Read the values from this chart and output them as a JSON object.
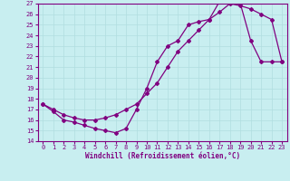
{
  "xlabel": "Windchill (Refroidissement éolien,°C)",
  "background_color": "#c8eef0",
  "line_color": "#800080",
  "grid_color": "#b0dde0",
  "xlim": [
    -0.5,
    23.5
  ],
  "ylim": [
    14,
    27
  ],
  "xticks": [
    0,
    1,
    2,
    3,
    4,
    5,
    6,
    7,
    8,
    9,
    10,
    11,
    12,
    13,
    14,
    15,
    16,
    17,
    18,
    19,
    20,
    21,
    22,
    23
  ],
  "yticks": [
    14,
    15,
    16,
    17,
    18,
    19,
    20,
    21,
    22,
    23,
    24,
    25,
    26,
    27
  ],
  "line1_x": [
    0,
    1,
    2,
    3,
    4,
    5,
    6,
    7,
    8,
    9,
    10,
    11,
    12,
    13,
    14,
    15,
    16,
    17,
    18,
    19,
    20,
    21,
    22,
    23
  ],
  "line1_y": [
    17.5,
    17.0,
    16.5,
    16.2,
    16.0,
    16.0,
    16.2,
    16.5,
    17.0,
    17.5,
    18.5,
    19.5,
    21.0,
    22.5,
    23.5,
    24.5,
    25.5,
    26.2,
    27.0,
    26.8,
    26.5,
    26.0,
    25.5,
    21.5
  ],
  "line2_x": [
    0,
    1,
    2,
    3,
    4,
    5,
    6,
    7,
    8,
    9,
    10,
    11,
    12,
    13,
    14,
    15,
    16,
    17,
    18,
    19,
    20,
    21,
    22,
    23
  ],
  "line2_y": [
    17.5,
    16.8,
    16.0,
    15.8,
    15.5,
    15.2,
    15.0,
    14.8,
    15.2,
    17.0,
    19.0,
    21.5,
    23.0,
    23.5,
    25.0,
    25.3,
    25.5,
    27.2,
    27.2,
    27.0,
    23.5,
    21.5,
    21.5,
    21.5
  ]
}
